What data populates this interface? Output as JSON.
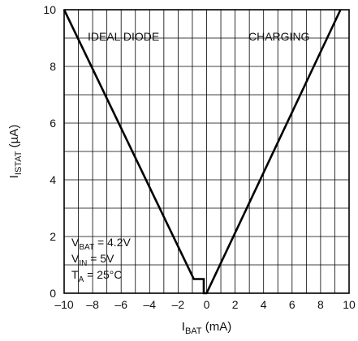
{
  "chart_data": {
    "type": "line",
    "xlabel": {
      "main": "I",
      "sub": "BAT",
      "rest": " (mA)"
    },
    "ylabel": {
      "main": "I",
      "sub": "ISTAT",
      "rest": " (µA)"
    },
    "xlim": [
      -10,
      10
    ],
    "ylim": [
      0,
      10
    ],
    "x_ticks": [
      -10,
      -8,
      -6,
      -4,
      -2,
      0,
      2,
      4,
      6,
      8,
      10
    ],
    "y_ticks": [
      0,
      2,
      4,
      6,
      8,
      10
    ],
    "x_tick_labels": [
      "–10",
      "–8",
      "–6",
      "–4",
      "–2",
      "0",
      "2",
      "4",
      "6",
      "8",
      "10"
    ],
    "y_tick_labels": [
      "0",
      "2",
      "4",
      "6",
      "8",
      "10"
    ],
    "grid": true,
    "series": [
      {
        "x": [
          -10,
          -0.9,
          -0.2,
          -0.2,
          0,
          9.4
        ],
        "y": [
          10,
          0.5,
          0.5,
          0,
          0,
          10
        ]
      }
    ],
    "annotations": {
      "ideal_diode": "IDEAL DIODE",
      "charging": "CHARGING",
      "conditions": [
        {
          "main": "V",
          "sub": "BAT",
          "rest": " = 4.2V"
        },
        {
          "main": "V",
          "sub": "IN",
          "rest": " = 5V"
        },
        {
          "main": "T",
          "sub": "A",
          "rest": " = 25°C"
        }
      ]
    },
    "colors": {
      "line": "#000000",
      "grid": "#000000",
      "background": "#ffffff"
    }
  }
}
